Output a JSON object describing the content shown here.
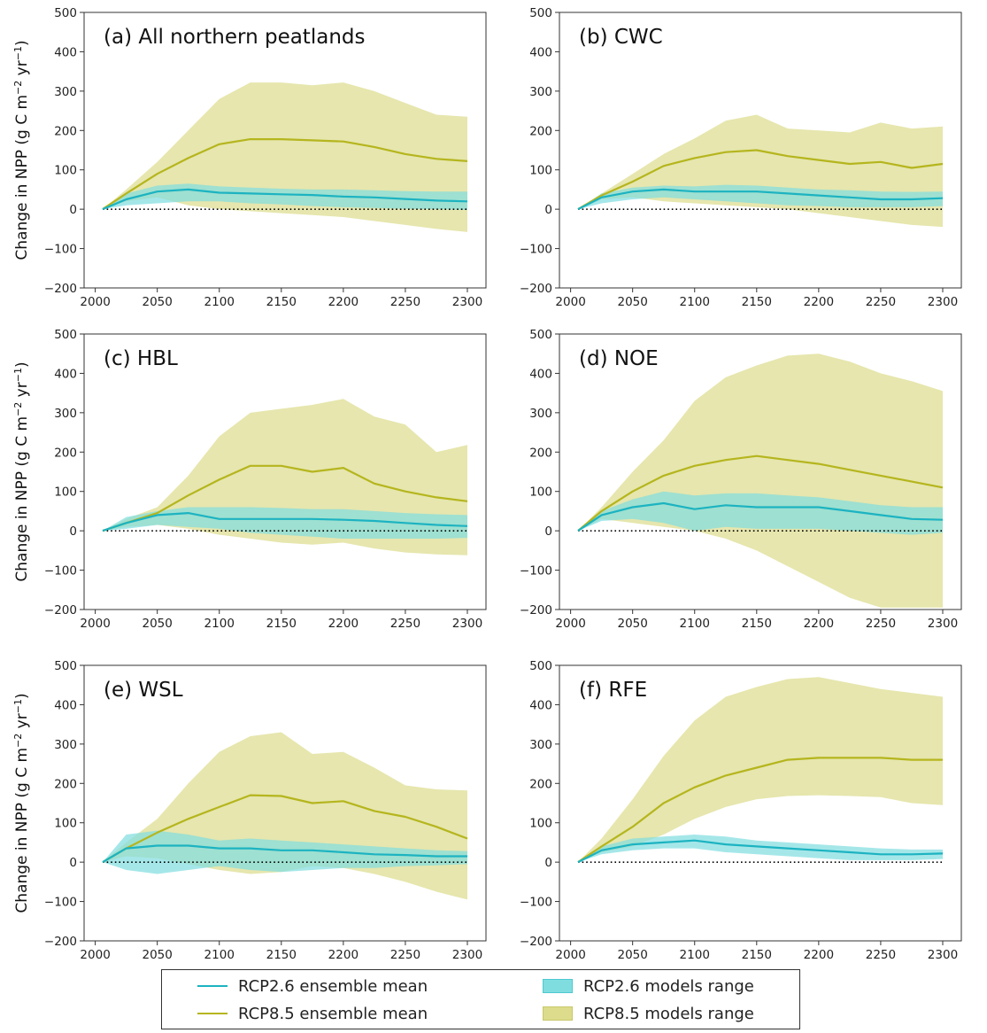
{
  "legend": {
    "rcp26_mean": "RCP2.6 ensemble mean",
    "rcp85_mean": "RCP8.5 ensemble mean",
    "rcp26_range": "RCP2.6 models range",
    "rcp85_range": "RCP8.5 models range"
  },
  "colors": {
    "rcp26_line": "#1cb3c1",
    "rcp85_line": "#b5b51e",
    "rcp26_fill": "#7fdde0",
    "rcp85_fill": "#dcdc8c"
  },
  "ylabel_html": "Change in NPP (g C m<tspan baseline-shift='super' font-size='11'>−2</tspan> yr<tspan baseline-shift='super' font-size='11'>−1</tspan>)",
  "chart_data": [
    {
      "type": "area",
      "title": "(a) All northern peatlands",
      "ylabel": "Change in NPP (g C m−2 yr−1)",
      "xlim": [
        2006,
        2300
      ],
      "ylim": [
        -200,
        500
      ],
      "xticks": [
        2000,
        2050,
        2100,
        2150,
        2200,
        2250,
        2300
      ],
      "yticks": [
        -200,
        -100,
        0,
        100,
        200,
        300,
        400,
        500
      ],
      "x": [
        2006,
        2025,
        2050,
        2075,
        2100,
        2125,
        2150,
        2175,
        2200,
        2225,
        2250,
        2275,
        2300
      ],
      "series": [
        {
          "name": "RCP2.6 ensemble mean",
          "values": [
            0,
            25,
            45,
            50,
            42,
            40,
            38,
            36,
            32,
            30,
            26,
            22,
            20
          ]
        },
        {
          "name": "RCP8.5 ensemble mean",
          "values": [
            0,
            40,
            90,
            130,
            165,
            178,
            178,
            175,
            172,
            158,
            140,
            128,
            122
          ]
        },
        {
          "name": "RCP2.6 models range",
          "upper": [
            0,
            40,
            60,
            65,
            58,
            55,
            52,
            50,
            50,
            48,
            46,
            45,
            45
          ],
          "lower": [
            0,
            10,
            15,
            20,
            20,
            15,
            12,
            8,
            5,
            3,
            1,
            0,
            -2
          ]
        },
        {
          "name": "RCP8.5 models range",
          "upper": [
            0,
            50,
            120,
            200,
            280,
            322,
            322,
            315,
            322,
            300,
            270,
            240,
            235
          ],
          "lower": [
            0,
            20,
            30,
            10,
            0,
            -5,
            -10,
            -15,
            -20,
            -30,
            -40,
            -50,
            -58
          ]
        }
      ]
    },
    {
      "type": "area",
      "title": "(b) CWC",
      "ylabel": "",
      "xlim": [
        2006,
        2300
      ],
      "ylim": [
        -200,
        500
      ],
      "xticks": [
        2000,
        2050,
        2100,
        2150,
        2200,
        2250,
        2300
      ],
      "yticks": [
        -200,
        -100,
        0,
        100,
        200,
        300,
        400,
        500
      ],
      "x": [
        2006,
        2025,
        2050,
        2075,
        2100,
        2125,
        2150,
        2175,
        2200,
        2225,
        2250,
        2275,
        2300
      ],
      "series": [
        {
          "name": "RCP2.6 ensemble mean",
          "values": [
            0,
            30,
            45,
            50,
            45,
            45,
            45,
            40,
            35,
            30,
            25,
            25,
            28
          ]
        },
        {
          "name": "RCP8.5 ensemble mean",
          "values": [
            0,
            35,
            70,
            110,
            130,
            145,
            150,
            135,
            125,
            115,
            120,
            105,
            115
          ]
        },
        {
          "name": "RCP2.6 models range",
          "upper": [
            0,
            40,
            55,
            60,
            58,
            62,
            60,
            55,
            50,
            48,
            45,
            44,
            45
          ],
          "lower": [
            0,
            15,
            25,
            30,
            25,
            20,
            15,
            10,
            8,
            5,
            5,
            5,
            8
          ]
        },
        {
          "name": "RCP8.5 models range",
          "upper": [
            0,
            40,
            90,
            140,
            180,
            225,
            240,
            205,
            200,
            195,
            220,
            205,
            210
          ],
          "lower": [
            0,
            25,
            30,
            20,
            15,
            10,
            5,
            0,
            -10,
            -20,
            -30,
            -40,
            -45
          ]
        }
      ]
    },
    {
      "type": "area",
      "title": "(c) HBL",
      "ylabel": "Change in NPP (g C m−2 yr−1)",
      "xlim": [
        2006,
        2300
      ],
      "ylim": [
        -200,
        500
      ],
      "xticks": [
        2000,
        2050,
        2100,
        2150,
        2200,
        2250,
        2300
      ],
      "yticks": [
        -200,
        -100,
        0,
        100,
        200,
        300,
        400,
        500
      ],
      "x": [
        2006,
        2025,
        2050,
        2075,
        2100,
        2125,
        2150,
        2175,
        2200,
        2225,
        2250,
        2275,
        2300
      ],
      "series": [
        {
          "name": "RCP2.6 ensemble mean",
          "values": [
            0,
            20,
            40,
            45,
            30,
            30,
            30,
            30,
            28,
            25,
            20,
            15,
            12
          ]
        },
        {
          "name": "RCP8.5 ensemble mean",
          "values": [
            0,
            20,
            45,
            90,
            130,
            165,
            165,
            150,
            160,
            120,
            100,
            85,
            75
          ]
        },
        {
          "name": "RCP2.6 models range",
          "upper": [
            0,
            35,
            50,
            60,
            60,
            60,
            58,
            55,
            55,
            50,
            45,
            42,
            40
          ],
          "lower": [
            0,
            5,
            15,
            10,
            5,
            -5,
            -10,
            -15,
            -20,
            -20,
            -20,
            -20,
            -18
          ]
        },
        {
          "name": "RCP8.5 models range",
          "upper": [
            0,
            30,
            60,
            140,
            240,
            300,
            310,
            320,
            335,
            290,
            270,
            200,
            218
          ],
          "lower": [
            0,
            10,
            15,
            5,
            -10,
            -20,
            -30,
            -35,
            -30,
            -45,
            -55,
            -60,
            -62
          ]
        }
      ]
    },
    {
      "type": "area",
      "title": "(d) NOE",
      "ylabel": "",
      "xlim": [
        2006,
        2300
      ],
      "ylim": [
        -200,
        500
      ],
      "xticks": [
        2000,
        2050,
        2100,
        2150,
        2200,
        2250,
        2300
      ],
      "yticks": [
        -200,
        -100,
        0,
        100,
        200,
        300,
        400,
        500
      ],
      "x": [
        2006,
        2025,
        2050,
        2075,
        2100,
        2125,
        2150,
        2175,
        2200,
        2225,
        2250,
        2275,
        2300
      ],
      "series": [
        {
          "name": "RCP2.6 ensemble mean",
          "values": [
            0,
            40,
            60,
            70,
            55,
            65,
            60,
            60,
            60,
            50,
            40,
            30,
            28
          ]
        },
        {
          "name": "RCP8.5 ensemble mean",
          "values": [
            0,
            50,
            100,
            140,
            165,
            180,
            190,
            180,
            170,
            155,
            140,
            125,
            110
          ]
        },
        {
          "name": "RCP2.6 models range",
          "upper": [
            0,
            50,
            80,
            100,
            90,
            95,
            95,
            90,
            85,
            75,
            65,
            60,
            60
          ],
          "lower": [
            0,
            25,
            30,
            20,
            0,
            10,
            5,
            5,
            5,
            0,
            -5,
            -10,
            -5
          ]
        },
        {
          "name": "RCP8.5 models range",
          "upper": [
            0,
            60,
            150,
            230,
            330,
            390,
            420,
            445,
            450,
            430,
            400,
            380,
            355
          ],
          "lower": [
            0,
            30,
            20,
            10,
            0,
            -20,
            -50,
            -90,
            -130,
            -170,
            -195,
            -195,
            -195
          ]
        }
      ]
    },
    {
      "type": "area",
      "title": "(e) WSL",
      "ylabel": "Change in NPP (g C m−2 yr−1)",
      "xlim": [
        2006,
        2300
      ],
      "ylim": [
        -200,
        500
      ],
      "xticks": [
        2000,
        2050,
        2100,
        2150,
        2200,
        2250,
        2300
      ],
      "yticks": [
        -200,
        -100,
        0,
        100,
        200,
        300,
        400,
        500
      ],
      "x": [
        2006,
        2025,
        2050,
        2075,
        2100,
        2125,
        2150,
        2175,
        2200,
        2225,
        2250,
        2275,
        2300
      ],
      "series": [
        {
          "name": "RCP2.6 ensemble mean",
          "values": [
            0,
            35,
            42,
            42,
            35,
            35,
            30,
            30,
            25,
            20,
            18,
            15,
            15
          ]
        },
        {
          "name": "RCP8.5 ensemble mean",
          "values": [
            0,
            35,
            75,
            110,
            140,
            170,
            168,
            150,
            155,
            130,
            115,
            90,
            60
          ]
        },
        {
          "name": "RCP2.6 models range",
          "upper": [
            0,
            70,
            80,
            70,
            55,
            60,
            55,
            50,
            45,
            40,
            35,
            30,
            28
          ],
          "lower": [
            0,
            -20,
            -30,
            -20,
            -10,
            -20,
            -25,
            -20,
            -15,
            -15,
            -10,
            -8,
            -5
          ]
        },
        {
          "name": "RCP8.5 models range",
          "upper": [
            0,
            50,
            110,
            200,
            280,
            320,
            330,
            275,
            280,
            240,
            195,
            185,
            182
          ],
          "lower": [
            0,
            15,
            10,
            -5,
            -20,
            -30,
            -25,
            -10,
            -15,
            -30,
            -50,
            -75,
            -95
          ]
        }
      ]
    },
    {
      "type": "area",
      "title": "(f) RFE",
      "ylabel": "",
      "xlim": [
        2006,
        2300
      ],
      "ylim": [
        -200,
        500
      ],
      "xticks": [
        2000,
        2050,
        2100,
        2150,
        2200,
        2250,
        2300
      ],
      "yticks": [
        -200,
        -100,
        0,
        100,
        200,
        300,
        400,
        500
      ],
      "x": [
        2006,
        2025,
        2050,
        2075,
        2100,
        2125,
        2150,
        2175,
        2200,
        2225,
        2250,
        2275,
        2300
      ],
      "series": [
        {
          "name": "RCP2.6 ensemble mean",
          "values": [
            0,
            30,
            45,
            50,
            55,
            45,
            40,
            35,
            30,
            25,
            20,
            20,
            22
          ]
        },
        {
          "name": "RCP8.5 ensemble mean",
          "values": [
            0,
            40,
            90,
            150,
            190,
            220,
            240,
            260,
            265,
            265,
            265,
            260,
            260
          ]
        },
        {
          "name": "RCP2.6 models range",
          "upper": [
            0,
            40,
            60,
            65,
            70,
            65,
            55,
            50,
            45,
            40,
            35,
            32,
            32
          ],
          "lower": [
            0,
            20,
            30,
            35,
            35,
            25,
            20,
            15,
            10,
            5,
            5,
            5,
            8
          ]
        },
        {
          "name": "RCP8.5 models range",
          "upper": [
            0,
            60,
            160,
            270,
            360,
            420,
            445,
            465,
            470,
            455,
            440,
            430,
            420
          ],
          "lower": [
            0,
            25,
            40,
            70,
            110,
            140,
            160,
            168,
            170,
            168,
            165,
            150,
            145
          ]
        }
      ]
    }
  ]
}
